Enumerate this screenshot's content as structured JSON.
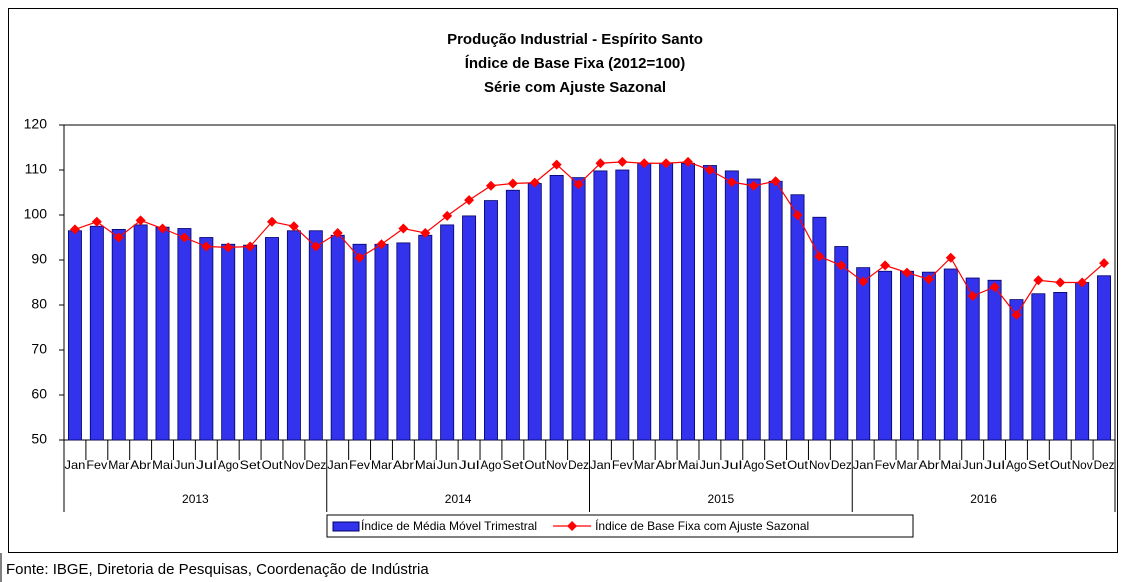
{
  "chart_data": {
    "type": "bar_line",
    "title": [
      "Produção Industrial - Espírito Santo",
      "Índice de Base Fixa (2012=100)",
      "Série com Ajuste Sazonal"
    ],
    "categories": [
      "Jan",
      "Fev",
      "Mar",
      "Abr",
      "Mai",
      "Jun",
      "Jul",
      "Ago",
      "Set",
      "Out",
      "Nov",
      "Dez",
      "Jan",
      "Fev",
      "Mar",
      "Abr",
      "Mai",
      "Jun",
      "Jul",
      "Ago",
      "Set",
      "Out",
      "Nov",
      "Dez",
      "Jan",
      "Fev",
      "Mar",
      "Abr",
      "Mai",
      "Jun",
      "Jul",
      "Ago",
      "Set",
      "Out",
      "Nov",
      "Dez",
      "Jan",
      "Fev",
      "Mar",
      "Abr",
      "Mai",
      "Jun",
      "Jul",
      "Ago",
      "Set",
      "Out",
      "Nov",
      "Dez"
    ],
    "groups": [
      "2013",
      "2014",
      "2015",
      "2016"
    ],
    "series": [
      {
        "name": "Índice de Média Móvel Trimestral",
        "type": "bar",
        "color": "#3333ee",
        "values": [
          96.5,
          97.5,
          96.8,
          97.8,
          97.3,
          97.0,
          95.0,
          93.5,
          93.3,
          95.0,
          96.5,
          96.5,
          95.5,
          93.5,
          93.5,
          93.8,
          95.5,
          97.8,
          99.8,
          103.2,
          105.5,
          107.0,
          108.8,
          108.3,
          109.8,
          110.0,
          111.5,
          111.5,
          111.5,
          111.0,
          109.8,
          108.0,
          107.5,
          104.5,
          99.5,
          93.0,
          88.3,
          87.5,
          87.5,
          87.3,
          88.0,
          86.0,
          85.5,
          81.2,
          82.5,
          82.8,
          85.0,
          86.5
        ]
      },
      {
        "name": "Índice de Base Fixa com Ajuste Sazonal",
        "type": "line",
        "color": "#ff0000",
        "values": [
          96.8,
          98.5,
          95.0,
          98.8,
          97.0,
          95.0,
          93.0,
          92.8,
          93.0,
          98.5,
          97.5,
          93.0,
          96.0,
          90.5,
          93.5,
          97.0,
          96.0,
          99.8,
          103.3,
          106.5,
          107.0,
          107.2,
          111.2,
          106.8,
          111.5,
          111.8,
          111.5,
          111.5,
          111.8,
          110.0,
          107.3,
          106.5,
          107.5,
          100.0,
          90.8,
          88.8,
          85.2,
          88.8,
          87.2,
          85.7,
          90.5,
          82.0,
          84.0,
          77.8,
          85.5,
          85.0,
          85.0,
          89.3
        ]
      }
    ],
    "ylim": [
      50,
      120
    ],
    "yticks": [
      50,
      60,
      70,
      80,
      90,
      100,
      110,
      120
    ],
    "grid": false,
    "legend": "bottom",
    "source": "Fonte: IBGE, Diretoria de Pesquisas, Coordenação de Indústria"
  }
}
